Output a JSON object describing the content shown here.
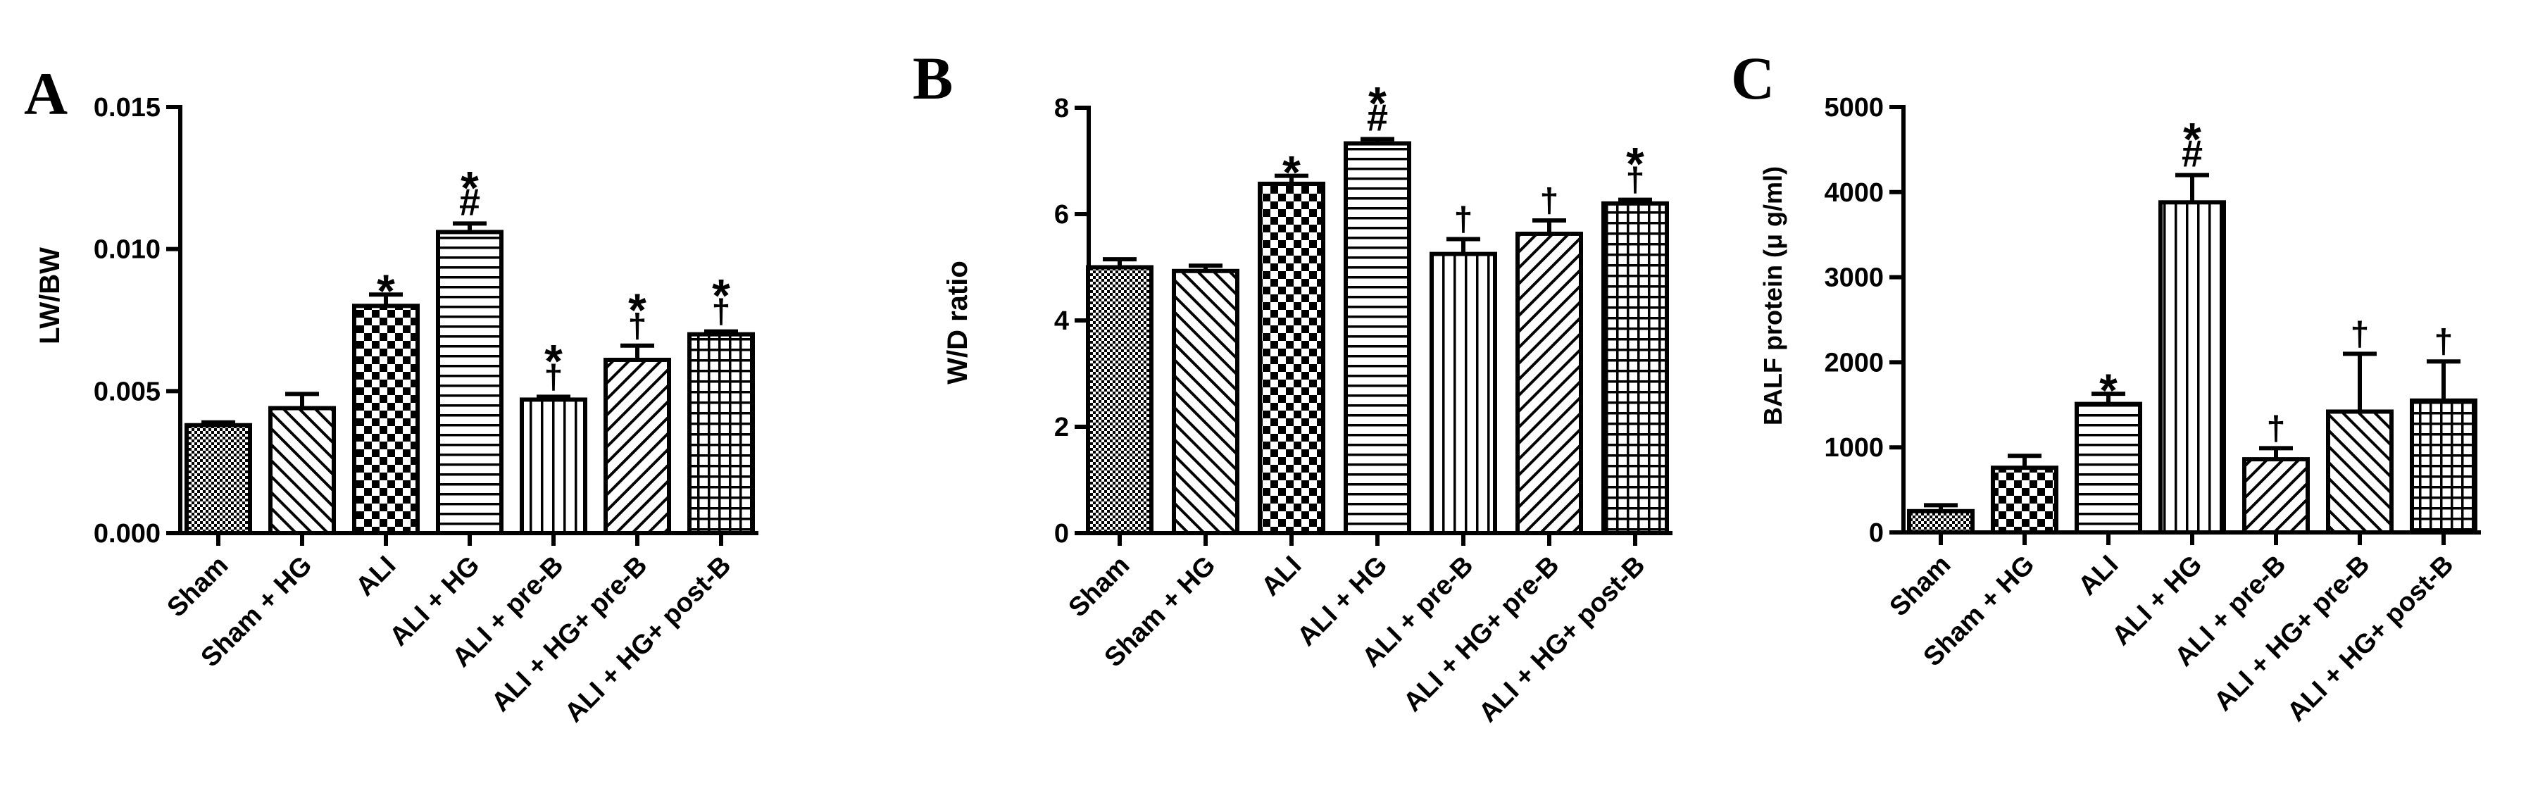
{
  "chart_data": [
    {
      "type": "bar",
      "panel": "A",
      "ylabel": "LW/BW",
      "ylim": [
        0,
        0.015
      ],
      "yticks": [
        "0.000",
        "0.005",
        "0.010",
        "0.015"
      ],
      "categories": [
        "Sham",
        "Sham + HG",
        "ALI",
        "ALI + HG",
        "ALI + pre-B",
        "ALI + HG+ pre-B",
        "ALI + HG+ post-B"
      ],
      "values": [
        0.0038,
        0.0044,
        0.008,
        0.0106,
        0.0047,
        0.0061,
        0.007
      ],
      "errors": [
        0.0001,
        0.0005,
        0.0004,
        0.0003,
        0.0001,
        0.0005,
        0.0001
      ],
      "patterns": [
        "dots",
        "diag-left",
        "checker",
        "horizontal",
        "vertical",
        "diag-right",
        "grid"
      ],
      "marks": [
        [],
        [],
        [
          "*"
        ],
        [
          "*",
          "#"
        ],
        [
          "*",
          "†"
        ],
        [
          "*",
          "†"
        ],
        [
          "*",
          "†"
        ]
      ]
    },
    {
      "type": "bar",
      "panel": "B",
      "ylabel": "W/D ratio",
      "ylim": [
        0,
        8
      ],
      "yticks": [
        "0",
        "2",
        "4",
        "6",
        "8"
      ],
      "categories": [
        "Sham",
        "Sham + HG",
        "ALI",
        "ALI + HG",
        "ALI + pre-B",
        "ALI + HG+ pre-B",
        "ALI + HG+ post-B"
      ],
      "values": [
        5.0,
        4.93,
        6.57,
        7.33,
        5.25,
        5.63,
        6.2
      ],
      "errors": [
        0.15,
        0.1,
        0.15,
        0.08,
        0.28,
        0.25,
        0.07
      ],
      "patterns": [
        "dots",
        "diag-left",
        "checker",
        "horizontal",
        "vertical",
        "diag-right",
        "grid"
      ],
      "marks": [
        [],
        [],
        [
          "*"
        ],
        [
          "*",
          "#"
        ],
        [
          "†"
        ],
        [
          "†"
        ],
        [
          "*",
          "†"
        ]
      ]
    },
    {
      "type": "bar",
      "panel": "C",
      "ylabel": "BALF protein (μ g/ml)",
      "ylim": [
        0,
        5000
      ],
      "yticks": [
        "0",
        "1000",
        "2000",
        "3000",
        "4000",
        "5000"
      ],
      "categories": [
        "Sham",
        "Sham + HG",
        "ALI",
        "ALI + HG",
        "ALI + pre-B",
        "ALI + HG+ pre-B",
        "ALI + HG+ post-B"
      ],
      "values": [
        250,
        760,
        1510,
        3880,
        860,
        1420,
        1550
      ],
      "errors": [
        70,
        140,
        120,
        320,
        130,
        680,
        460
      ],
      "patterns": [
        "dots",
        "checker",
        "horizontal",
        "vertical",
        "diag-right",
        "diag-left",
        "grid"
      ],
      "marks": [
        [],
        [],
        [
          "*"
        ],
        [
          "*",
          "#"
        ],
        [
          "†"
        ],
        [
          "†"
        ],
        [
          "†"
        ]
      ]
    }
  ]
}
